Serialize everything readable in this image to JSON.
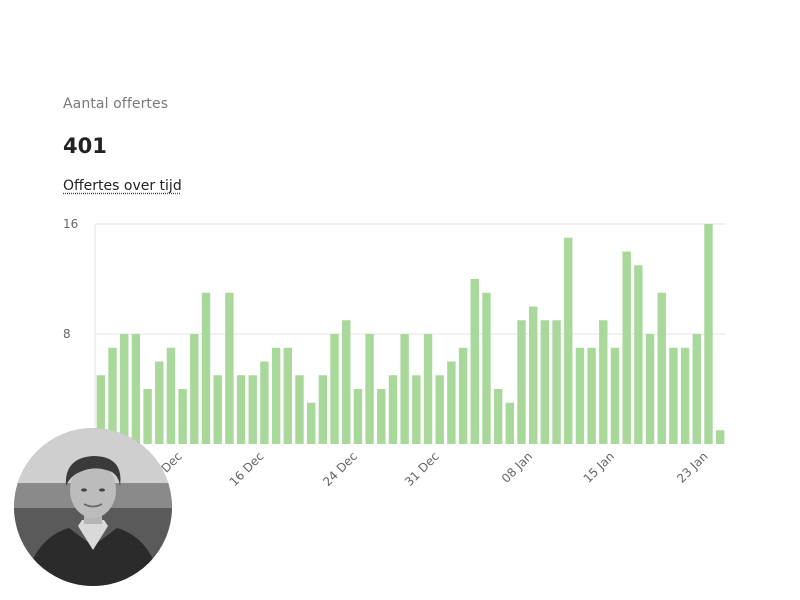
{
  "metric": {
    "label": "Aantal offertes",
    "value": "401"
  },
  "chart_title": "Offertes over tijd",
  "chart_data": {
    "type": "bar",
    "title": "Offertes over tijd",
    "bar_color": "#a8d89a",
    "ylim": [
      0,
      16
    ],
    "yticks": [
      8,
      16
    ],
    "grid": true,
    "x_tick_labels": [
      {
        "index": 7,
        "label": "9 Dec"
      },
      {
        "index": 14,
        "label": "16 Dec"
      },
      {
        "index": 22,
        "label": "24 Dec"
      },
      {
        "index": 29,
        "label": "31 Dec"
      },
      {
        "index": 37,
        "label": "08 Jan"
      },
      {
        "index": 44,
        "label": "15 Jan"
      },
      {
        "index": 52,
        "label": "23 Jan"
      }
    ],
    "values": [
      5,
      7,
      8,
      8,
      4,
      6,
      7,
      4,
      8,
      11,
      5,
      11,
      5,
      5,
      6,
      7,
      7,
      5,
      3,
      5,
      8,
      9,
      4,
      8,
      4,
      5,
      8,
      5,
      8,
      5,
      6,
      7,
      12,
      11,
      4,
      3,
      9,
      10,
      9,
      9,
      15,
      7,
      7,
      9,
      7,
      14,
      13,
      8,
      11,
      7,
      7,
      8,
      16,
      1
    ]
  }
}
